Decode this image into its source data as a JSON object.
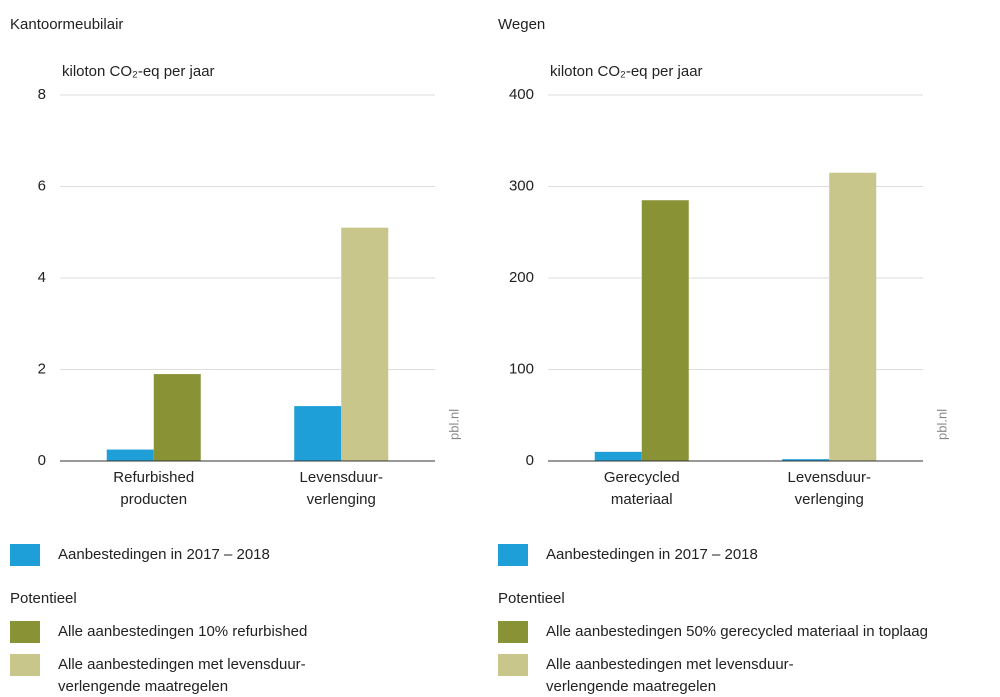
{
  "chart_data": [
    {
      "type": "bar",
      "title": "Kantoormeubilair",
      "y_label": "kiloton CO₂-eq per jaar",
      "source": "pbl.nl",
      "categories": [
        "Refurbished producten",
        "Levensduur-verlenging"
      ],
      "ylim": [
        0,
        8
      ],
      "yticks": [
        0,
        2,
        4,
        6,
        8
      ],
      "grid": true,
      "legend_group": "Potentieel",
      "series": [
        {
          "name": "Aanbestedingen in 2017 – 2018",
          "color": "#1e9fd8",
          "values": [
            0.25,
            1.2
          ]
        },
        {
          "name": "Alle aanbestedingen 10% refurbished",
          "color": "#8a9236",
          "values": [
            1.9,
            null
          ]
        },
        {
          "name": "Alle aanbestedingen met levensduur-verlengende maatregelen",
          "color": "#c8c68a",
          "values": [
            null,
            5.1
          ]
        }
      ]
    },
    {
      "type": "bar",
      "title": "Wegen",
      "y_label": "kiloton CO₂-eq per jaar",
      "source": "pbl.nl",
      "categories": [
        "Gerecycled materiaal",
        "Levensduur-verlenging"
      ],
      "ylim": [
        0,
        400
      ],
      "yticks": [
        0,
        100,
        200,
        300,
        400
      ],
      "grid": true,
      "legend_group": "Potentieel",
      "series": [
        {
          "name": "Aanbestedingen in 2017 – 2018",
          "color": "#1e9fd8",
          "values": [
            10,
            2
          ]
        },
        {
          "name": "Alle aanbestedingen 50% gerecycled materiaal in toplaag",
          "color": "#8a9236",
          "values": [
            285,
            null
          ]
        },
        {
          "name": "Alle aanbestedingen met levensduur-verlengende maatregelen",
          "color": "#c8c68a",
          "values": [
            null,
            315
          ]
        }
      ]
    }
  ]
}
